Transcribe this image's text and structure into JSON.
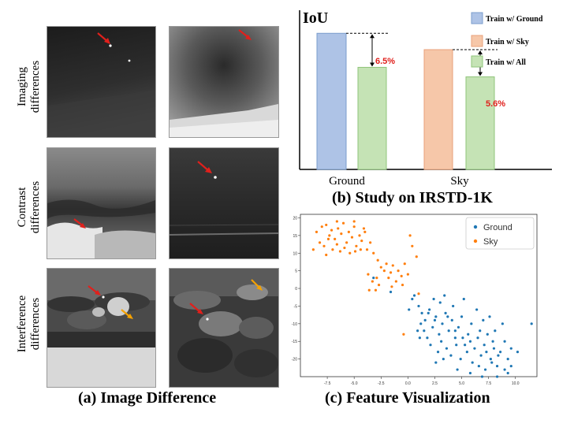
{
  "panel_a": {
    "caption": "(a) Image Difference",
    "rows": [
      {
        "line1": "Imaging",
        "line2": "differences"
      },
      {
        "line1": "Contrast",
        "line2": "differences"
      },
      {
        "line1": "Interference",
        "line2": "differences"
      }
    ]
  },
  "panel_b": {
    "caption": "(b) Study on IRSTD-1K",
    "chart_data": {
      "type": "bar",
      "title": "IoU",
      "ylabel": "IoU",
      "categories": [
        "Ground",
        "Sky"
      ],
      "series": [
        {
          "name": "Train w/ Ground",
          "color": "#aec3e6",
          "values": [
            100,
            null
          ]
        },
        {
          "name": "Train w/ Sky",
          "color": "#f6c7a9",
          "values": [
            null,
            88
          ]
        },
        {
          "name": "Train w/ All",
          "color": "#c5e3b5",
          "values": [
            75,
            68
          ]
        }
      ],
      "annotations": [
        "6.5%",
        "5.6%"
      ],
      "ylim": [
        0,
        110
      ]
    }
  },
  "panel_c": {
    "caption": "(c) Feature Visualization",
    "chart_data": {
      "type": "scatter",
      "legend": [
        "Ground",
        "Sky"
      ],
      "colors": {
        "Ground": "#1f77b4",
        "Sky": "#ff7f0e"
      },
      "xlim": [
        -10,
        12
      ],
      "ylim": [
        -25,
        21
      ],
      "xticks": [
        "-7.5",
        "-5.0",
        "-2.5",
        "0.0",
        "2.5",
        "5.0",
        "7.5",
        "10.0"
      ],
      "yticks": [
        "20",
        "15",
        "10",
        "5",
        "0",
        "-5",
        "-10",
        "-15",
        "-20"
      ],
      "series": [
        {
          "name": "Sky",
          "points": [
            [
              -8.5,
              16
            ],
            [
              -8.0,
              17.5
            ],
            [
              -7.6,
              18
            ],
            [
              -7.3,
              15
            ],
            [
              -7.1,
              16.5
            ],
            [
              -6.8,
              14
            ],
            [
              -6.5,
              17
            ],
            [
              -6.2,
              15.5
            ],
            [
              -6.0,
              18.5
            ],
            [
              -5.7,
              13
            ],
            [
              -5.5,
              16
            ],
            [
              -5.2,
              14.5
            ],
            [
              -5.0,
              17.5
            ],
            [
              -4.8,
              12
            ],
            [
              -4.5,
              15
            ],
            [
              -4.3,
              13.5
            ],
            [
              -4.0,
              16
            ],
            [
              -3.8,
              11
            ],
            [
              -8.2,
              13
            ],
            [
              -7.8,
              12
            ],
            [
              -7.4,
              14
            ],
            [
              -7.0,
              11
            ],
            [
              -6.6,
              12.5
            ],
            [
              -6.3,
              10.5
            ],
            [
              -5.9,
              11.5
            ],
            [
              -5.4,
              10
            ],
            [
              -4.9,
              10.5
            ],
            [
              -4.4,
              11
            ],
            [
              -3.5,
              13
            ],
            [
              -3.2,
              10
            ],
            [
              -2.8,
              8
            ],
            [
              -2.5,
              6
            ],
            [
              -2.2,
              5
            ],
            [
              -2.0,
              7
            ],
            [
              -1.8,
              3
            ],
            [
              -1.6,
              4.5
            ],
            [
              -1.4,
              6.5
            ],
            [
              -1.1,
              2
            ],
            [
              -0.9,
              5
            ],
            [
              -0.6,
              3.5
            ],
            [
              -0.3,
              7
            ],
            [
              0.0,
              4
            ],
            [
              -2.9,
              3
            ],
            [
              -3.3,
              2
            ],
            [
              -3.7,
              4
            ],
            [
              -2.7,
              1
            ],
            [
              -3.0,
              -0.5
            ],
            [
              -3.6,
              -0.5
            ],
            [
              -1.5,
              0.5
            ],
            [
              -0.5,
              1
            ],
            [
              0.4,
              12
            ],
            [
              0.8,
              9
            ],
            [
              0.2,
              15
            ],
            [
              -0.4,
              -13
            ],
            [
              1.0,
              -1.5
            ],
            [
              -6.6,
              19
            ],
            [
              -5.0,
              19
            ],
            [
              -4.1,
              17
            ],
            [
              -8.8,
              11
            ],
            [
              -7.6,
              9.5
            ]
          ]
        },
        {
          "name": "Ground",
          "points": [
            [
              -3.2,
              3
            ],
            [
              -1.6,
              -1
            ],
            [
              0.6,
              -2
            ],
            [
              1.0,
              -5
            ],
            [
              1.3,
              -7
            ],
            [
              1.6,
              -9
            ],
            [
              2.0,
              -6
            ],
            [
              2.3,
              -11
            ],
            [
              2.6,
              -8
            ],
            [
              2.9,
              -13
            ],
            [
              3.2,
              -10
            ],
            [
              3.5,
              -7
            ],
            [
              3.8,
              -12
            ],
            [
              4.1,
              -9
            ],
            [
              4.4,
              -14
            ],
            [
              4.7,
              -11
            ],
            [
              5.0,
              -8
            ],
            [
              5.3,
              -16
            ],
            [
              5.6,
              -13
            ],
            [
              5.9,
              -10
            ],
            [
              6.2,
              -17
            ],
            [
              6.5,
              -14
            ],
            [
              6.8,
              -19
            ],
            [
              7.1,
              -16
            ],
            [
              7.4,
              -13
            ],
            [
              7.7,
              -20
            ],
            [
              8.0,
              -17
            ],
            [
              8.3,
              -22
            ],
            [
              8.6,
              -18
            ],
            [
              9.0,
              -15
            ],
            [
              9.3,
              -20
            ],
            [
              9.6,
              -17
            ],
            [
              1.8,
              -14
            ],
            [
              2.1,
              -16
            ],
            [
              2.8,
              -18
            ],
            [
              3.1,
              -15
            ],
            [
              3.6,
              -17
            ],
            [
              4.0,
              -19
            ],
            [
              4.5,
              -16
            ],
            [
              4.9,
              -20
            ],
            [
              5.5,
              -18
            ],
            [
              6.0,
              -21
            ],
            [
              6.6,
              -22
            ],
            [
              7.2,
              -23
            ],
            [
              7.8,
              -21
            ],
            [
              8.4,
              -19
            ],
            [
              9.0,
              -23
            ],
            [
              9.6,
              -22
            ],
            [
              10.2,
              -18
            ],
            [
              11.5,
              -10
            ],
            [
              0.4,
              -3
            ],
            [
              0.9,
              -12
            ],
            [
              1.2,
              -10
            ],
            [
              1.5,
              -12
            ],
            [
              2.4,
              -3
            ],
            [
              3.0,
              -4
            ],
            [
              3.4,
              -2
            ],
            [
              4.2,
              -5
            ],
            [
              5.2,
              -3
            ],
            [
              6.4,
              -6
            ],
            [
              7.0,
              -9
            ],
            [
              7.6,
              -8
            ],
            [
              8.1,
              -12
            ],
            [
              8.8,
              -10
            ],
            [
              3.3,
              -20
            ],
            [
              2.6,
              -21
            ],
            [
              4.6,
              -23
            ],
            [
              5.8,
              -24
            ],
            [
              6.9,
              -25
            ],
            [
              8.3,
              -25
            ],
            [
              9.3,
              -24
            ],
            [
              0.1,
              -6
            ],
            [
              1.1,
              -14
            ],
            [
              1.9,
              -7
            ],
            [
              2.5,
              -9
            ],
            [
              3.7,
              -8
            ],
            [
              4.4,
              -12
            ],
            [
              5.1,
              -14
            ],
            [
              5.8,
              -15
            ],
            [
              6.7,
              -12
            ],
            [
              7.3,
              -18
            ],
            [
              7.9,
              -15
            ]
          ]
        }
      ]
    }
  }
}
